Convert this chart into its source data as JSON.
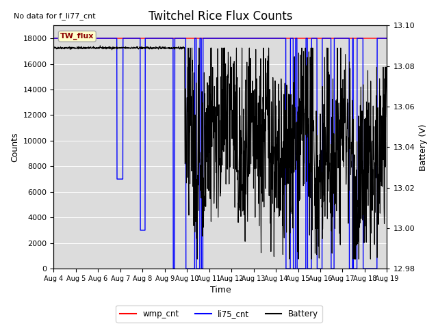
{
  "title": "Twitchel Rice Flux Counts",
  "no_data_text": "No data for f_li77_cnt",
  "tw_flux_label": "TW_flux",
  "xlabel": "Time",
  "ylabel_left": "Counts",
  "ylabel_right": "Battery (V)",
  "ylim_left": [
    0,
    19000
  ],
  "ylim_right": [
    12.98,
    13.1
  ],
  "yticks_left": [
    0,
    2000,
    4000,
    6000,
    8000,
    10000,
    12000,
    14000,
    16000,
    18000
  ],
  "yticks_right": [
    12.98,
    13.0,
    13.02,
    13.04,
    13.06,
    13.08,
    13.1
  ],
  "xtick_labels": [
    "Aug 4",
    "Aug 5",
    "Aug 6",
    "Aug 7",
    "Aug 8",
    "Aug 9",
    "Aug 10",
    "Aug 11",
    "Aug 12",
    "Aug 13",
    "Aug 14",
    "Aug 15",
    "Aug 16",
    "Aug 17",
    "Aug 18",
    "Aug 19"
  ],
  "legend_entries": [
    {
      "label": "wmp_cnt",
      "color": "red"
    },
    {
      "label": "li75_cnt",
      "color": "blue"
    },
    {
      "label": "Battery",
      "color": "black"
    }
  ],
  "plot_bg_color": "#dcdcdc",
  "wmp_cnt_value": 18000,
  "seed": 42
}
